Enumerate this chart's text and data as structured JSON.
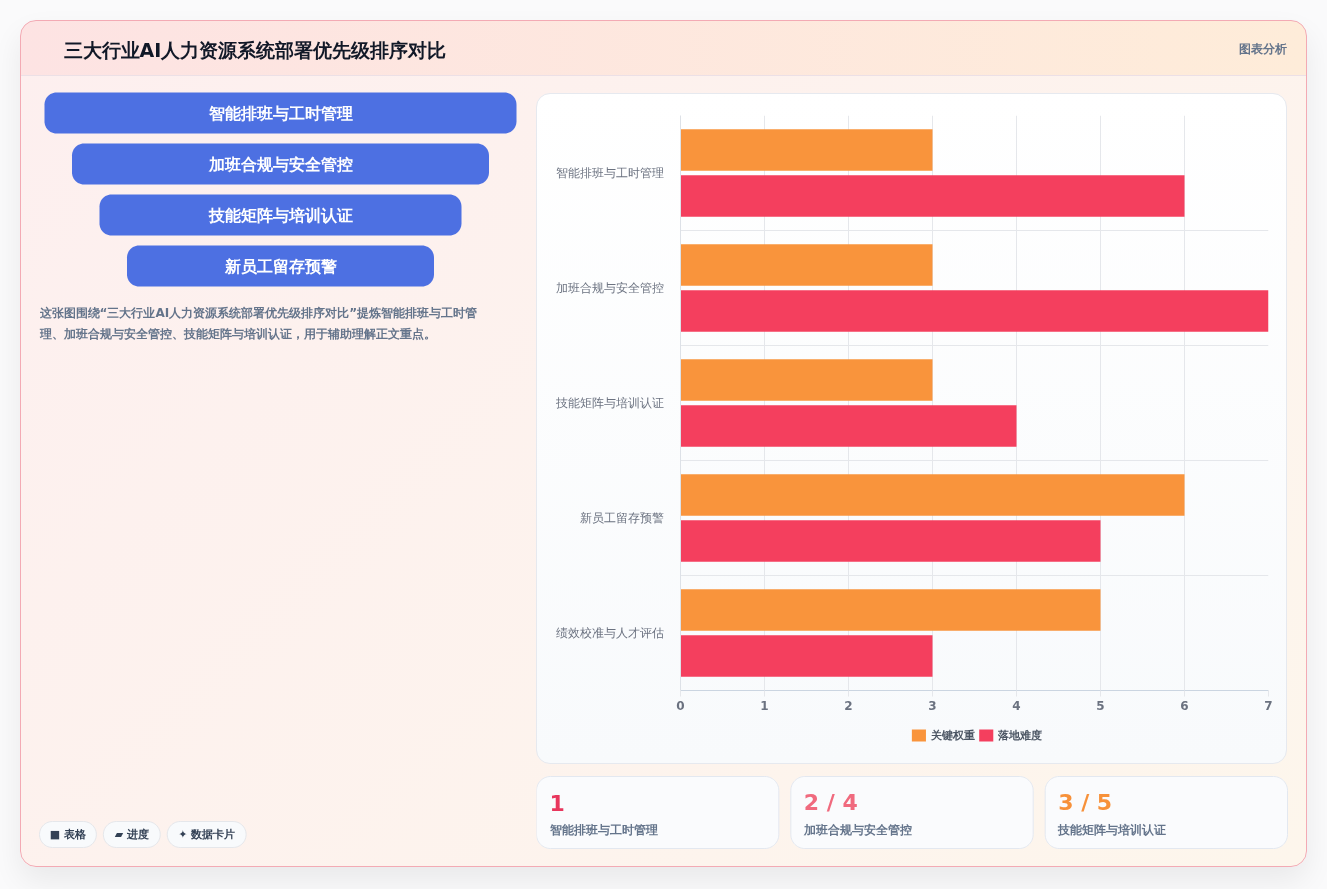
{
  "chart_data": [
    {
      "type": "other",
      "title": "三大行业AI人力资源系统部署优先级排序对比",
      "subtitle": "图表分析",
      "categories": [
        "智能排班与工时管理",
        "加班合规与安全管控",
        "技能矩阵与培训认证",
        "新员工留存预警"
      ],
      "colors": [
        "#4d70e2",
        "#4d70e2",
        "#4d70e2",
        "#4d70e2"
      ],
      "annotations": [
        "这张图围绕“三大行业AI人力资源系统部署优先级排序对比”提炼智能排班与工时管理、加班合规与安全管控、技能矩阵与培训认证，用于辅助理解正文重点。",
        "■ 表格",
        "▰ 进度",
        "✦ 数据卡片"
      ]
    },
    {
      "type": "bar",
      "orientation": "horizontal",
      "categories": [
        "智能排班与工时管理",
        "加班合规与安全管控",
        "技能矩阵与培训认证",
        "新员工留存预警",
        "绩效校准与人才评估"
      ],
      "series": [
        {
          "name": "关键权重",
          "color": "#f9943c",
          "values": [
            3,
            3,
            3,
            6,
            5
          ]
        },
        {
          "name": "落地难度",
          "color": "#f43f5e",
          "values": [
            6,
            7,
            4,
            5,
            3
          ]
        }
      ],
      "xlim": [
        0,
        7
      ],
      "xticks": [
        0,
        1,
        2,
        3,
        4,
        5,
        6,
        7
      ],
      "grid": true,
      "legend": "bottom"
    },
    {
      "type": "other",
      "categories": [
        "智能排班与工时管理",
        "加班合规与安全管控",
        "技能矩阵与培训认证"
      ],
      "value_labels": [
        "1",
        "2 / 4",
        "3 / 5"
      ],
      "colors": [
        "#e8365d",
        "#f06a7e",
        "#f7913a"
      ]
    }
  ]
}
